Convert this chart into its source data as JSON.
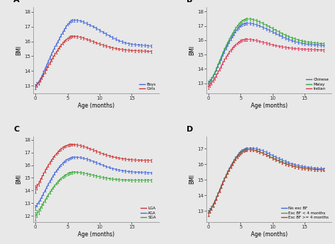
{
  "age_months": [
    0,
    0.25,
    0.5,
    0.75,
    1.0,
    1.25,
    1.5,
    1.75,
    2.0,
    2.25,
    2.5,
    2.75,
    3.0,
    3.25,
    3.5,
    3.75,
    4.0,
    4.25,
    4.5,
    4.75,
    5.0,
    5.25,
    5.5,
    5.75,
    6.0,
    6.5,
    7.0,
    7.5,
    8.0,
    8.5,
    9.0,
    9.5,
    10.0,
    10.5,
    11.0,
    11.5,
    12.0,
    12.5,
    13.0,
    13.5,
    14.0,
    14.5,
    15.0,
    15.5,
    16.0,
    16.5,
    17.0,
    17.5,
    18.0
  ],
  "A_boys": [
    12.95,
    13.1,
    13.25,
    13.45,
    13.65,
    13.9,
    14.15,
    14.4,
    14.65,
    14.9,
    15.15,
    15.38,
    15.6,
    15.8,
    16.0,
    16.2,
    16.4,
    16.6,
    16.8,
    16.98,
    17.15,
    17.25,
    17.35,
    17.4,
    17.42,
    17.42,
    17.38,
    17.3,
    17.2,
    17.1,
    17.0,
    16.88,
    16.75,
    16.62,
    16.5,
    16.38,
    16.25,
    16.15,
    16.05,
    15.97,
    15.9,
    15.85,
    15.8,
    15.78,
    15.76,
    15.74,
    15.72,
    15.7,
    15.68
  ],
  "A_girls": [
    12.95,
    13.08,
    13.2,
    13.38,
    13.55,
    13.75,
    13.95,
    14.15,
    14.35,
    14.55,
    14.75,
    14.93,
    15.1,
    15.27,
    15.44,
    15.6,
    15.74,
    15.87,
    16.0,
    16.1,
    16.18,
    16.25,
    16.3,
    16.33,
    16.34,
    16.32,
    16.28,
    16.22,
    16.14,
    16.06,
    15.98,
    15.9,
    15.82,
    15.75,
    15.68,
    15.62,
    15.56,
    15.52,
    15.48,
    15.45,
    15.42,
    15.4,
    15.38,
    15.37,
    15.36,
    15.35,
    15.34,
    15.33,
    15.32
  ],
  "A_boys_err": [
    0.18,
    0.14,
    0.12,
    0.11,
    0.1,
    0.1,
    0.1,
    0.1,
    0.1,
    0.1,
    0.09,
    0.09,
    0.09,
    0.09,
    0.09,
    0.09,
    0.09,
    0.09,
    0.09,
    0.09,
    0.09,
    0.09,
    0.09,
    0.09,
    0.09,
    0.09,
    0.09,
    0.09,
    0.09,
    0.09,
    0.09,
    0.09,
    0.09,
    0.09,
    0.09,
    0.09,
    0.09,
    0.09,
    0.09,
    0.09,
    0.09,
    0.09,
    0.09,
    0.09,
    0.09,
    0.09,
    0.09,
    0.09,
    0.09
  ],
  "A_girls_err": [
    0.18,
    0.14,
    0.12,
    0.11,
    0.1,
    0.1,
    0.1,
    0.1,
    0.1,
    0.1,
    0.09,
    0.09,
    0.09,
    0.09,
    0.09,
    0.09,
    0.09,
    0.09,
    0.09,
    0.09,
    0.09,
    0.09,
    0.09,
    0.09,
    0.09,
    0.09,
    0.09,
    0.09,
    0.09,
    0.09,
    0.09,
    0.09,
    0.09,
    0.09,
    0.09,
    0.09,
    0.09,
    0.09,
    0.09,
    0.09,
    0.09,
    0.09,
    0.09,
    0.09,
    0.09,
    0.09,
    0.09,
    0.09,
    0.09
  ],
  "A_ylim": [
    12.5,
    18.3
  ],
  "A_yticks": [
    13,
    14,
    15,
    16,
    17,
    18
  ],
  "B_chinese": [
    13.0,
    13.15,
    13.3,
    13.5,
    13.7,
    13.95,
    14.2,
    14.46,
    14.72,
    14.98,
    15.22,
    15.45,
    15.67,
    15.88,
    16.08,
    16.27,
    16.45,
    16.62,
    16.78,
    16.9,
    17.0,
    17.07,
    17.13,
    17.16,
    17.18,
    17.18,
    17.14,
    17.08,
    17.0,
    16.9,
    16.8,
    16.7,
    16.58,
    16.47,
    16.36,
    16.25,
    16.14,
    16.05,
    15.97,
    15.9,
    15.84,
    15.79,
    15.75,
    15.72,
    15.7,
    15.68,
    15.66,
    15.64,
    15.62
  ],
  "B_malay": [
    12.95,
    13.12,
    13.28,
    13.5,
    13.72,
    14.0,
    14.28,
    14.56,
    14.84,
    15.1,
    15.36,
    15.6,
    15.83,
    16.05,
    16.26,
    16.46,
    16.64,
    16.82,
    16.98,
    17.12,
    17.24,
    17.33,
    17.4,
    17.45,
    17.48,
    17.48,
    17.44,
    17.37,
    17.28,
    17.18,
    17.06,
    16.95,
    16.82,
    16.7,
    16.58,
    16.47,
    16.36,
    16.26,
    16.17,
    16.09,
    16.02,
    15.96,
    15.91,
    15.87,
    15.84,
    15.81,
    15.79,
    15.77,
    15.75
  ],
  "B_indian": [
    12.75,
    12.88,
    13.0,
    13.18,
    13.35,
    13.55,
    13.75,
    13.97,
    14.18,
    14.4,
    14.6,
    14.8,
    14.98,
    15.15,
    15.3,
    15.44,
    15.57,
    15.68,
    15.78,
    15.87,
    15.93,
    15.98,
    16.02,
    16.05,
    16.06,
    16.05,
    16.02,
    15.98,
    15.92,
    15.86,
    15.8,
    15.74,
    15.68,
    15.63,
    15.58,
    15.54,
    15.5,
    15.47,
    15.44,
    15.42,
    15.4,
    15.38,
    15.37,
    15.36,
    15.35,
    15.34,
    15.33,
    15.32,
    15.31
  ],
  "B_chinese_err": [
    0.18,
    0.14,
    0.12,
    0.11,
    0.1,
    0.1,
    0.1,
    0.1,
    0.09,
    0.09,
    0.09,
    0.09,
    0.09,
    0.09,
    0.09,
    0.09,
    0.09,
    0.09,
    0.09,
    0.09,
    0.09,
    0.09,
    0.09,
    0.09,
    0.09,
    0.09,
    0.09,
    0.09,
    0.09,
    0.09,
    0.09,
    0.09,
    0.09,
    0.09,
    0.09,
    0.09,
    0.09,
    0.09,
    0.09,
    0.09,
    0.09,
    0.09,
    0.09,
    0.09,
    0.09,
    0.09,
    0.09,
    0.09,
    0.09
  ],
  "B_malay_err": [
    0.18,
    0.14,
    0.12,
    0.11,
    0.1,
    0.1,
    0.1,
    0.1,
    0.09,
    0.09,
    0.09,
    0.09,
    0.09,
    0.09,
    0.09,
    0.09,
    0.09,
    0.09,
    0.09,
    0.09,
    0.09,
    0.09,
    0.09,
    0.09,
    0.09,
    0.09,
    0.09,
    0.09,
    0.09,
    0.09,
    0.09,
    0.09,
    0.09,
    0.09,
    0.09,
    0.09,
    0.09,
    0.09,
    0.09,
    0.09,
    0.09,
    0.09,
    0.09,
    0.09,
    0.09,
    0.09,
    0.09,
    0.09,
    0.09
  ],
  "B_indian_err": [
    0.18,
    0.14,
    0.12,
    0.11,
    0.1,
    0.1,
    0.1,
    0.1,
    0.09,
    0.09,
    0.09,
    0.09,
    0.09,
    0.09,
    0.09,
    0.09,
    0.09,
    0.09,
    0.09,
    0.09,
    0.09,
    0.09,
    0.09,
    0.09,
    0.09,
    0.09,
    0.09,
    0.09,
    0.09,
    0.09,
    0.09,
    0.09,
    0.09,
    0.09,
    0.09,
    0.09,
    0.09,
    0.09,
    0.09,
    0.09,
    0.09,
    0.09,
    0.09,
    0.09,
    0.09,
    0.09,
    0.09,
    0.09,
    0.09
  ],
  "B_ylim": [
    12.3,
    18.3
  ],
  "B_yticks": [
    13,
    14,
    15,
    16,
    17,
    18
  ],
  "C_lga": [
    14.1,
    14.32,
    14.54,
    14.8,
    15.05,
    15.3,
    15.55,
    15.78,
    16.0,
    16.2,
    16.4,
    16.58,
    16.74,
    16.9,
    17.04,
    17.17,
    17.28,
    17.38,
    17.46,
    17.52,
    17.57,
    17.6,
    17.62,
    17.63,
    17.63,
    17.6,
    17.55,
    17.48,
    17.4,
    17.3,
    17.2,
    17.1,
    17.0,
    16.9,
    16.82,
    16.74,
    16.67,
    16.61,
    16.56,
    16.52,
    16.48,
    16.45,
    16.43,
    16.41,
    16.4,
    16.39,
    16.38,
    16.38,
    16.37
  ],
  "C_aga": [
    12.65,
    12.85,
    13.05,
    13.28,
    13.5,
    13.75,
    14.0,
    14.25,
    14.5,
    14.73,
    14.95,
    15.16,
    15.36,
    15.54,
    15.72,
    15.88,
    16.02,
    16.15,
    16.27,
    16.37,
    16.46,
    16.52,
    16.57,
    16.61,
    16.63,
    16.63,
    16.6,
    16.55,
    16.48,
    16.4,
    16.3,
    16.2,
    16.1,
    16.0,
    15.9,
    15.82,
    15.74,
    15.67,
    15.61,
    15.57,
    15.53,
    15.5,
    15.47,
    15.45,
    15.44,
    15.43,
    15.42,
    15.41,
    15.4
  ],
  "C_sga": [
    11.95,
    12.15,
    12.35,
    12.57,
    12.78,
    13.0,
    13.22,
    13.44,
    13.65,
    13.85,
    14.04,
    14.22,
    14.39,
    14.55,
    14.7,
    14.83,
    14.95,
    15.06,
    15.15,
    15.23,
    15.3,
    15.36,
    15.4,
    15.43,
    15.45,
    15.44,
    15.41,
    15.37,
    15.32,
    15.26,
    15.2,
    15.14,
    15.08,
    15.02,
    14.98,
    14.94,
    14.9,
    14.88,
    14.86,
    14.84,
    14.83,
    14.82,
    14.81,
    14.81,
    14.81,
    14.81,
    14.81,
    14.81,
    14.81
  ],
  "C_lga_err": [
    0.3,
    0.22,
    0.18,
    0.16,
    0.14,
    0.13,
    0.12,
    0.11,
    0.11,
    0.1,
    0.1,
    0.1,
    0.1,
    0.1,
    0.1,
    0.1,
    0.1,
    0.1,
    0.1,
    0.1,
    0.1,
    0.1,
    0.1,
    0.1,
    0.1,
    0.1,
    0.1,
    0.1,
    0.1,
    0.1,
    0.1,
    0.1,
    0.1,
    0.1,
    0.1,
    0.1,
    0.1,
    0.1,
    0.1,
    0.1,
    0.1,
    0.1,
    0.1,
    0.1,
    0.1,
    0.1,
    0.1,
    0.1,
    0.1
  ],
  "C_aga_err": [
    0.18,
    0.14,
    0.12,
    0.11,
    0.1,
    0.1,
    0.1,
    0.09,
    0.09,
    0.09,
    0.09,
    0.09,
    0.09,
    0.09,
    0.09,
    0.09,
    0.09,
    0.09,
    0.09,
    0.09,
    0.09,
    0.09,
    0.09,
    0.09,
    0.09,
    0.09,
    0.09,
    0.09,
    0.09,
    0.09,
    0.09,
    0.09,
    0.09,
    0.09,
    0.09,
    0.09,
    0.09,
    0.09,
    0.09,
    0.09,
    0.09,
    0.09,
    0.09,
    0.09,
    0.09,
    0.09,
    0.09,
    0.09,
    0.09
  ],
  "C_sga_err": [
    0.35,
    0.28,
    0.22,
    0.18,
    0.16,
    0.14,
    0.13,
    0.12,
    0.11,
    0.11,
    0.1,
    0.1,
    0.1,
    0.1,
    0.1,
    0.1,
    0.1,
    0.1,
    0.1,
    0.1,
    0.1,
    0.1,
    0.1,
    0.1,
    0.1,
    0.1,
    0.1,
    0.1,
    0.1,
    0.1,
    0.1,
    0.1,
    0.1,
    0.1,
    0.1,
    0.1,
    0.1,
    0.1,
    0.1,
    0.1,
    0.1,
    0.1,
    0.1,
    0.1,
    0.1,
    0.1,
    0.1,
    0.1,
    0.1
  ],
  "C_ylim": [
    11.5,
    18.3
  ],
  "C_yticks": [
    12,
    13,
    14,
    15,
    16,
    17,
    18
  ],
  "D_no_exc": [
    12.9,
    13.06,
    13.22,
    13.42,
    13.62,
    13.86,
    14.1,
    14.35,
    14.6,
    14.83,
    15.06,
    15.28,
    15.5,
    15.7,
    15.9,
    16.08,
    16.25,
    16.41,
    16.55,
    16.67,
    16.78,
    16.86,
    16.93,
    16.98,
    17.01,
    17.03,
    17.02,
    16.99,
    16.93,
    16.86,
    16.77,
    16.67,
    16.56,
    16.46,
    16.36,
    16.27,
    16.18,
    16.1,
    16.03,
    15.97,
    15.92,
    15.87,
    15.83,
    15.8,
    15.77,
    15.75,
    15.73,
    15.72,
    15.71
  ],
  "D_exc_lt4": [
    12.88,
    13.04,
    13.2,
    13.4,
    13.6,
    13.84,
    14.08,
    14.33,
    14.58,
    14.82,
    15.05,
    15.27,
    15.48,
    15.68,
    15.87,
    16.05,
    16.22,
    16.37,
    16.51,
    16.63,
    16.73,
    16.81,
    16.88,
    16.93,
    16.95,
    16.95,
    16.92,
    16.87,
    16.8,
    16.71,
    16.62,
    16.52,
    16.41,
    16.31,
    16.22,
    16.13,
    16.05,
    15.98,
    15.91,
    15.86,
    15.81,
    15.77,
    15.74,
    15.71,
    15.69,
    15.67,
    15.66,
    15.65,
    15.64
  ],
  "D_exc_ge4": [
    12.85,
    13.01,
    13.17,
    13.37,
    13.57,
    13.81,
    14.05,
    14.3,
    14.55,
    14.79,
    15.02,
    15.24,
    15.45,
    15.65,
    15.84,
    16.02,
    16.19,
    16.34,
    16.48,
    16.6,
    16.7,
    16.78,
    16.85,
    16.9,
    16.93,
    16.93,
    16.9,
    16.85,
    16.78,
    16.7,
    16.6,
    16.5,
    16.39,
    16.29,
    16.2,
    16.11,
    16.03,
    15.96,
    15.9,
    15.85,
    15.8,
    15.76,
    15.73,
    15.7,
    15.68,
    15.66,
    15.65,
    15.64,
    15.63
  ],
  "D_no_exc_err": [
    0.18,
    0.14,
    0.12,
    0.11,
    0.1,
    0.1,
    0.09,
    0.09,
    0.09,
    0.09,
    0.09,
    0.09,
    0.09,
    0.09,
    0.09,
    0.09,
    0.09,
    0.09,
    0.09,
    0.09,
    0.09,
    0.09,
    0.09,
    0.09,
    0.09,
    0.09,
    0.09,
    0.09,
    0.09,
    0.09,
    0.09,
    0.09,
    0.09,
    0.09,
    0.09,
    0.09,
    0.09,
    0.09,
    0.09,
    0.09,
    0.09,
    0.09,
    0.09,
    0.09,
    0.09,
    0.09,
    0.09,
    0.09,
    0.09
  ],
  "D_exc_lt4_err": [
    0.18,
    0.14,
    0.12,
    0.11,
    0.1,
    0.1,
    0.09,
    0.09,
    0.09,
    0.09,
    0.09,
    0.09,
    0.09,
    0.09,
    0.09,
    0.09,
    0.09,
    0.09,
    0.09,
    0.09,
    0.09,
    0.09,
    0.09,
    0.09,
    0.09,
    0.09,
    0.09,
    0.09,
    0.09,
    0.09,
    0.09,
    0.09,
    0.09,
    0.09,
    0.09,
    0.09,
    0.09,
    0.09,
    0.09,
    0.09,
    0.09,
    0.09,
    0.09,
    0.09,
    0.09,
    0.09,
    0.09,
    0.09,
    0.09
  ],
  "D_exc_ge4_err": [
    0.18,
    0.14,
    0.12,
    0.11,
    0.1,
    0.1,
    0.09,
    0.09,
    0.09,
    0.09,
    0.09,
    0.09,
    0.09,
    0.09,
    0.09,
    0.09,
    0.09,
    0.09,
    0.09,
    0.09,
    0.09,
    0.09,
    0.09,
    0.09,
    0.09,
    0.09,
    0.09,
    0.09,
    0.09,
    0.09,
    0.09,
    0.09,
    0.09,
    0.09,
    0.09,
    0.09,
    0.09,
    0.09,
    0.09,
    0.09,
    0.09,
    0.09,
    0.09,
    0.09,
    0.09,
    0.09,
    0.09,
    0.09,
    0.09
  ],
  "D_ylim": [
    12.3,
    17.8
  ],
  "D_yticks": [
    13,
    14,
    15,
    16,
    17
  ],
  "colors": {
    "boys": "#4466dd",
    "girls": "#cc3333",
    "chinese": "#4466dd",
    "malay": "#33aa33",
    "indian": "#dd3355",
    "lga": "#cc3333",
    "aga": "#4466dd",
    "sga": "#33aa33",
    "no_exc": "#4466dd",
    "exc_lt4": "#33aa33",
    "exc_ge4": "#cc3333"
  },
  "xlabel": "Age (months)",
  "ylabel": "BMI",
  "xticks": [
    0,
    5,
    10,
    15
  ],
  "xlim": [
    -0.3,
    19.2
  ],
  "background": "#e8e8e8",
  "panel_bg": "#e8e8e8"
}
